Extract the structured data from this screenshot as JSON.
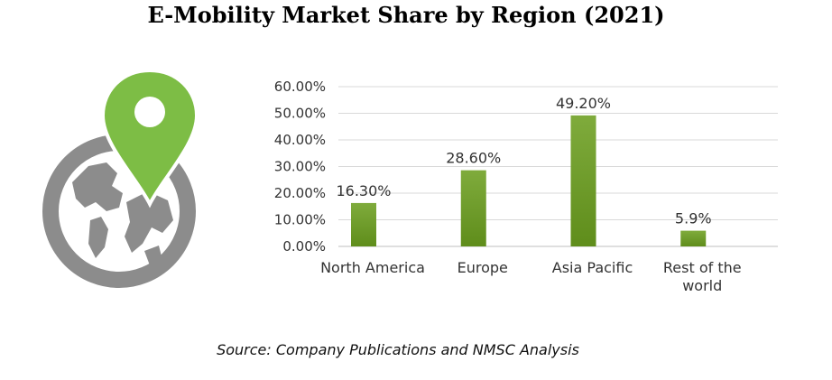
{
  "chart_data": {
    "type": "bar",
    "title": "E-Mobility Market Share by Region (2021)",
    "categories": [
      "North America",
      "Europe",
      "Asia Pacific",
      "Rest of the world"
    ],
    "values": [
      16.3,
      28.6,
      49.2,
      5.9
    ],
    "data_labels": [
      "16.30%",
      "28.60%",
      "49.20%",
      "5.9%"
    ],
    "ylim": [
      0,
      60
    ],
    "yticks": [
      "0.00%",
      "10.00%",
      "20.00%",
      "30.00%",
      "40.00%",
      "50.00%",
      "60.00%"
    ],
    "grid": true,
    "legend": "none",
    "bar_color_top": "#7fab3c",
    "bar_color_bottom": "#5f8d1b",
    "xlabel": "",
    "ylabel": ""
  },
  "source": "Source: Company Publications and NMSC Analysis",
  "graphic": {
    "icon": "globe-location-pin-icon",
    "globe_color": "#8c8c8c",
    "pin_color": "#7dbd45"
  }
}
